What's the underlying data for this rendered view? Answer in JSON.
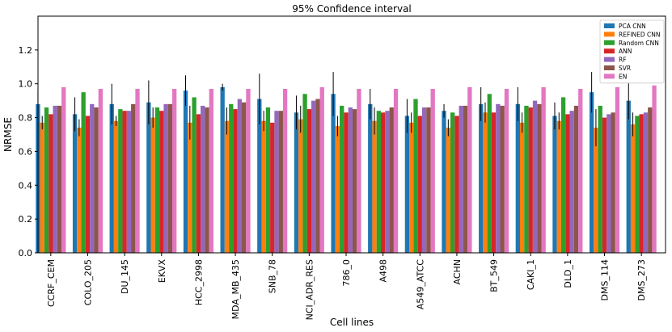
{
  "chart_data": {
    "type": "bar",
    "title": "95% Confidence interval",
    "xlabel": "Cell lines",
    "ylabel": "NRMSE",
    "ylim": [
      0,
      1.4
    ],
    "yticks": [
      0.0,
      0.2,
      0.4,
      0.6,
      0.8,
      1.0,
      1.2
    ],
    "ytick_labels": [
      "0.0",
      "0.2",
      "0.4",
      "0.6",
      "0.8",
      "1.0",
      "1.2"
    ],
    "legend_position": "top-right",
    "grid": false,
    "categories": [
      "CCRF_CEM",
      "COLO_205",
      "DU_145",
      "EKVX",
      "HCC_2998",
      "MDA_MB_435",
      "SNB_78",
      "NCI_ADR_RES",
      "786_0",
      "A498",
      "A549_ATCC",
      "ACHN",
      "BT_549",
      "CAKI_1",
      "DLD_1",
      "DMS_114",
      "DMS_273"
    ],
    "series": [
      {
        "name": "PCA CNN",
        "color": "#1f77b4",
        "values": [
          0.88,
          0.82,
          0.88,
          0.89,
          0.96,
          0.98,
          0.91,
          0.83,
          0.94,
          0.88,
          0.81,
          0.84,
          0.88,
          0.88,
          0.81,
          0.95,
          0.9
        ],
        "errors": [
          0.09,
          0.1,
          0.12,
          0.13,
          0.09,
          0.02,
          0.15,
          0.1,
          0.13,
          0.09,
          0.1,
          0.04,
          0.1,
          0.1,
          0.08,
          0.12,
          0.11
        ]
      },
      {
        "name": "REFINED CNN",
        "color": "#ff7f0e",
        "values": [
          0.77,
          0.74,
          0.78,
          0.8,
          0.77,
          0.78,
          0.78,
          0.79,
          0.75,
          0.78,
          0.77,
          0.74,
          0.83,
          0.77,
          0.78,
          0.74,
          0.76
        ],
        "errors": [
          0.04,
          0.05,
          0.03,
          0.06,
          0.1,
          0.08,
          0.06,
          0.08,
          0.06,
          0.08,
          0.06,
          0.05,
          0.06,
          0.06,
          0.05,
          0.11,
          0.07
        ]
      },
      {
        "name": "Random CNN",
        "color": "#2ca02c",
        "values": [
          0.86,
          0.95,
          0.85,
          0.86,
          0.92,
          0.88,
          0.86,
          0.94,
          0.87,
          0.84,
          0.91,
          0.83,
          0.94,
          0.87,
          0.92,
          0.87,
          0.81
        ]
      },
      {
        "name": "ANN",
        "color": "#d62728",
        "values": [
          0.82,
          0.81,
          0.84,
          0.84,
          0.82,
          0.85,
          0.77,
          0.85,
          0.83,
          0.83,
          0.81,
          0.81,
          0.83,
          0.86,
          0.82,
          0.8,
          0.82
        ]
      },
      {
        "name": "RF",
        "color": "#9467bd",
        "values": [
          0.87,
          0.88,
          0.84,
          0.88,
          0.87,
          0.91,
          0.84,
          0.9,
          0.86,
          0.84,
          0.86,
          0.87,
          0.88,
          0.9,
          0.84,
          0.82,
          0.83
        ]
      },
      {
        "name": "SVR",
        "color": "#8c564b",
        "values": [
          0.87,
          0.86,
          0.88,
          0.88,
          0.86,
          0.89,
          0.84,
          0.91,
          0.85,
          0.86,
          0.86,
          0.87,
          0.87,
          0.88,
          0.87,
          0.83,
          0.86
        ]
      },
      {
        "name": "EN",
        "color": "#e377c2",
        "values": [
          0.98,
          0.97,
          0.97,
          0.97,
          0.97,
          0.97,
          0.97,
          0.98,
          0.97,
          0.97,
          0.97,
          0.98,
          0.97,
          0.98,
          0.97,
          0.98,
          0.99
        ]
      }
    ]
  }
}
